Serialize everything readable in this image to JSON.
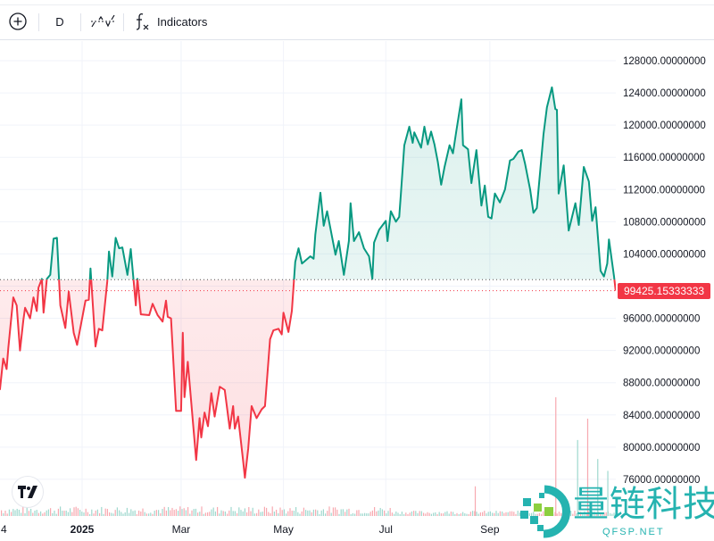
{
  "toolbar": {
    "add_symbol_icon": "plus-circle-icon",
    "interval_label": "D",
    "chart_type_icon": "baseline-chart-icon",
    "indicators_icon": "fx-icon",
    "indicators_label": "Indicators"
  },
  "last_price_label": "99425.15333333",
  "logo": {
    "tradingview": "TV",
    "watermark_text": "量链科技",
    "watermark_sub": "QFSP.NET"
  },
  "colors": {
    "up": "#089981",
    "down": "#f23645",
    "up_fill": "#089981",
    "down_fill": "#f23645",
    "grid": "#f0f3fa",
    "watermark": "#25b3b0"
  },
  "chart_data": {
    "type": "area",
    "style": "baseline",
    "grid": true,
    "baseline_value": 100800,
    "last_value": 99425.15333333,
    "ylim": [
      74500,
      130500
    ],
    "y_ticks": [
      "128000.00000000",
      "124000.00000000",
      "120000.00000000",
      "116000.00000000",
      "112000.00000000",
      "108000.00000000",
      "104000.00000000",
      "96000.00000000",
      "92000.00000000",
      "88000.00000000",
      "84000.00000000",
      "80000.00000000",
      "76000.00000000"
    ],
    "y_tick_values": [
      128000,
      124000,
      120000,
      116000,
      112000,
      108000,
      104000,
      96000,
      92000,
      88000,
      84000,
      80000,
      76000
    ],
    "x_ticks": [
      {
        "label": "4",
        "date": "2024-11-13"
      },
      {
        "label": "2025",
        "date": "2025-01-01"
      },
      {
        "label": "Mar",
        "date": "2025-03-01"
      },
      {
        "label": "May",
        "date": "2025-05-01"
      },
      {
        "label": "Jul",
        "date": "2025-07-01"
      },
      {
        "label": "Sep",
        "date": "2025-09-01"
      }
    ],
    "xlim": [
      "2024-11-13",
      "2025-11-15"
    ],
    "series": [
      {
        "x": [
          "2024-11-13",
          "2024-11-15",
          "2024-11-17",
          "2024-11-18",
          "2024-11-21",
          "2024-11-23",
          "2024-11-25",
          "2024-11-27",
          "2024-11-28",
          "2024-12-01",
          "2024-12-03",
          "2024-12-05",
          "2024-12-06",
          "2024-12-08",
          "2024-12-09",
          "2024-12-11",
          "2024-12-13",
          "2024-12-15",
          "2024-12-17",
          "2024-12-19",
          "2024-12-22",
          "2024-12-24",
          "2024-12-27",
          "2024-12-29",
          "2025-01-03",
          "2025-01-05",
          "2025-01-06",
          "2025-01-09",
          "2025-01-11",
          "2025-01-13",
          "2025-01-16",
          "2025-01-17",
          "2025-01-19",
          "2025-01-21",
          "2025-01-23",
          "2025-01-25",
          "2025-01-28",
          "2025-01-30",
          "2025-02-02",
          "2025-02-03",
          "2025-02-05",
          "2025-02-10",
          "2025-02-12",
          "2025-02-15",
          "2025-02-18",
          "2025-02-20",
          "2025-02-21",
          "2025-02-23",
          "2025-02-26",
          "2025-03-01",
          "2025-03-02",
          "2025-03-03",
          "2025-03-05",
          "2025-03-10",
          "2025-03-12",
          "2025-03-13",
          "2025-03-15",
          "2025-03-17",
          "2025-03-19",
          "2025-03-21",
          "2025-03-24",
          "2025-03-27",
          "2025-03-30",
          "2025-04-01",
          "2025-04-02",
          "2025-04-04",
          "2025-04-07",
          "2025-04-08",
          "2025-04-10",
          "2025-04-12",
          "2025-04-15",
          "2025-04-18",
          "2025-04-20",
          "2025-04-23",
          "2025-04-25",
          "2025-04-28",
          "2025-04-30",
          "2025-05-01",
          "2025-05-04",
          "2025-05-06",
          "2025-05-08",
          "2025-05-10",
          "2025-05-12",
          "2025-05-17",
          "2025-05-19",
          "2025-05-20",
          "2025-05-23",
          "2025-05-25",
          "2025-05-27",
          "2025-06-01",
          "2025-06-03",
          "2025-06-06",
          "2025-06-09",
          "2025-06-10",
          "2025-06-12",
          "2025-06-15",
          "2025-06-18",
          "2025-06-21",
          "2025-06-23",
          "2025-06-24",
          "2025-06-27",
          "2025-07-01",
          "2025-07-02",
          "2025-07-04",
          "2025-07-07",
          "2025-07-09",
          "2025-07-10",
          "2025-07-12",
          "2025-07-15",
          "2025-07-17",
          "2025-07-18",
          "2025-07-22",
          "2025-07-24",
          "2025-07-26",
          "2025-07-28",
          "2025-07-30",
          "2025-08-01",
          "2025-08-03",
          "2025-08-05",
          "2025-08-08",
          "2025-08-10",
          "2025-08-12",
          "2025-08-15",
          "2025-08-16",
          "2025-08-19",
          "2025-08-21",
          "2025-08-24",
          "2025-08-27",
          "2025-08-29",
          "2025-08-31",
          "2025-09-02",
          "2025-09-04",
          "2025-09-07",
          "2025-09-10",
          "2025-09-13",
          "2025-09-15",
          "2025-09-18",
          "2025-09-20",
          "2025-09-22",
          "2025-09-25",
          "2025-09-27",
          "2025-09-29",
          "2025-10-01",
          "2025-10-03",
          "2025-10-05",
          "2025-10-08",
          "2025-10-10",
          "2025-10-11",
          "2025-10-12",
          "2025-10-15",
          "2025-10-18",
          "2025-10-22",
          "2025-10-24",
          "2025-10-27",
          "2025-10-30",
          "2025-11-01",
          "2025-11-03",
          "2025-11-06",
          "2025-11-08",
          "2025-11-10",
          "2025-11-11",
          "2025-11-14",
          "2025-11-15"
        ],
        "y": [
          87100,
          91000,
          89700,
          92300,
          98600,
          97600,
          92000,
          95800,
          97300,
          96000,
          98600,
          96900,
          99800,
          100900,
          96700,
          100900,
          101400,
          105900,
          106000,
          97600,
          94800,
          99300,
          94200,
          92700,
          98200,
          98300,
          102200,
          92500,
          94700,
          94500,
          100600,
          104300,
          101200,
          106000,
          104700,
          104800,
          101400,
          104600,
          97600,
          100900,
          96500,
          96400,
          97800,
          96400,
          95600,
          98200,
          96200,
          96000,
          84500,
          84500,
          94200,
          86200,
          90600,
          78400,
          83600,
          81200,
          84300,
          82600,
          86700,
          83800,
          87500,
          87100,
          82300,
          85100,
          82300,
          83800,
          78200,
          76200,
          79800,
          85100,
          83600,
          84700,
          85100,
          93400,
          94500,
          94700,
          94000,
          96700,
          94300,
          96900,
          103000,
          104700,
          102800,
          103700,
          103400,
          106400,
          111600,
          107500,
          109300,
          103900,
          105600,
          101400,
          105600,
          110300,
          105600,
          106700,
          104700,
          103700,
          100900,
          105400,
          107000,
          108100,
          105600,
          109300,
          108000,
          108600,
          111500,
          117500,
          119800,
          117800,
          119100,
          117200,
          119800,
          117600,
          119200,
          117600,
          115400,
          112600,
          114800,
          117500,
          116500,
          119200,
          123200,
          117500,
          117000,
          112800,
          116900,
          110000,
          112500,
          108600,
          108400,
          111500,
          110400,
          112000,
          115600,
          115800,
          116700,
          116900,
          115200,
          112000,
          109100,
          109700,
          114200,
          118900,
          122200,
          124700,
          122000,
          121900,
          111500,
          115000,
          106900,
          110300,
          107600,
          114800,
          113000,
          108100,
          109800,
          101900,
          101200,
          102800,
          105800,
          101200,
          99425.15
        ]
      }
    ],
    "volume_spikes": [
      {
        "date": "2025-08-23",
        "level": 0.25,
        "direction": "down"
      },
      {
        "date": "2025-10-10",
        "level": 1.0,
        "direction": "down"
      },
      {
        "date": "2025-10-23",
        "level": 0.64,
        "direction": "up"
      },
      {
        "date": "2025-10-29",
        "level": 0.82,
        "direction": "down"
      },
      {
        "date": "2025-11-04",
        "level": 0.48,
        "direction": "up"
      },
      {
        "date": "2025-11-10",
        "level": 0.38,
        "direction": "up"
      }
    ]
  }
}
